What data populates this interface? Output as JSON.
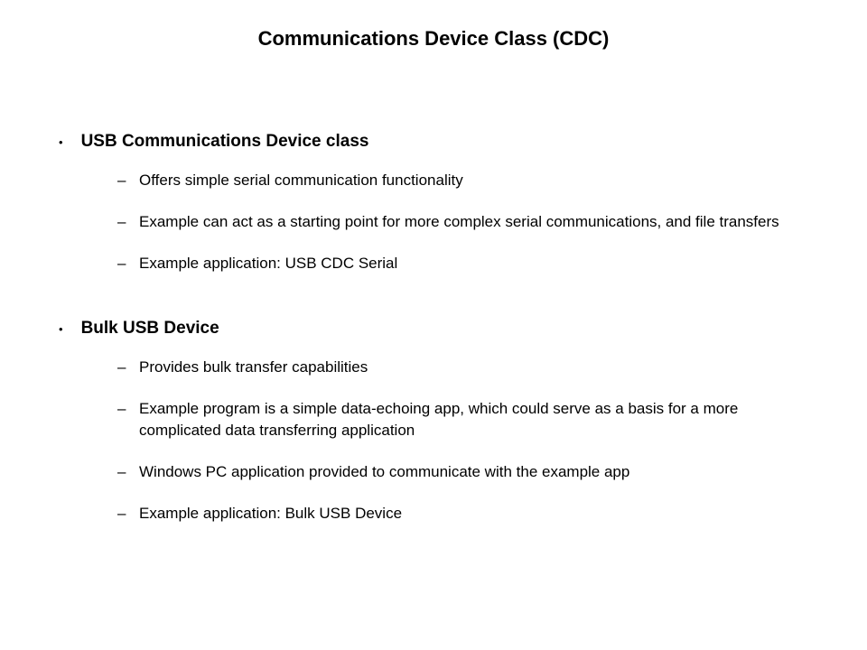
{
  "title": "Communications Device Class (CDC)",
  "sections": [
    {
      "heading": "USB Communications Device class",
      "items": [
        "Offers simple serial communication functionality",
        "Example can act as a starting point for more complex serial communications, and file transfers",
        "Example application: USB CDC Serial"
      ]
    },
    {
      "heading": "Bulk USB Device",
      "items": [
        "Provides bulk transfer capabilities",
        "Example program is a simple data-echoing app, which could serve as a basis for a more complicated data transferring application",
        "Windows PC application provided to communicate with the example app",
        "Example application: Bulk USB Device"
      ]
    }
  ],
  "style": {
    "background_color": "#ffffff",
    "text_color": "#000000",
    "title_fontsize": 22,
    "heading_fontsize": 19,
    "body_fontsize": 17,
    "font_family": "Verdana",
    "main_bullet": "•",
    "sub_bullet": "–"
  }
}
